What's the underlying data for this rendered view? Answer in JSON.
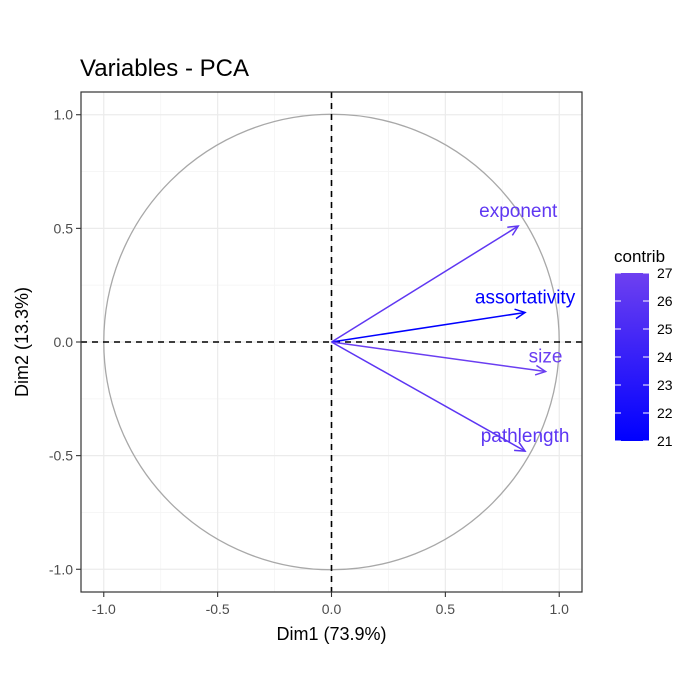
{
  "chart_data": {
    "type": "scatter",
    "subtype": "pca-variable-correlation-circle",
    "title": "Variables - PCA",
    "xlabel": "Dim1 (73.9%)",
    "ylabel": "Dim2 (13.3%)",
    "xlim": [
      -1.1,
      1.1
    ],
    "ylim": [
      -1.1,
      1.1
    ],
    "xticks": [
      -1.0,
      -0.5,
      0.0,
      0.5,
      1.0
    ],
    "yticks": [
      -1.0,
      -0.5,
      0.0,
      0.5,
      1.0
    ],
    "xtick_labels": [
      "-1.0",
      "-0.5",
      "0.0",
      "0.5",
      "1.0"
    ],
    "ytick_labels": [
      "-1.0",
      "-0.5",
      "0.0",
      "0.5",
      "1.0"
    ],
    "grid": true,
    "unit_circle": true,
    "variables": [
      {
        "name": "exponent",
        "x": 0.82,
        "y": 0.51,
        "contrib": 26.2
      },
      {
        "name": "assortativity",
        "x": 0.85,
        "y": 0.13,
        "contrib": 21.0
      },
      {
        "name": "size",
        "x": 0.94,
        "y": -0.13,
        "contrib": 26.8
      },
      {
        "name": "pathlength",
        "x": 0.85,
        "y": -0.48,
        "contrib": 26.0
      }
    ],
    "legend": {
      "title": "contrib",
      "placement": "right",
      "min": 21,
      "max": 27,
      "ticks": [
        21,
        22,
        23,
        24,
        25,
        26,
        27
      ],
      "color_low": "#0000ff",
      "color_high": "#6e40f0"
    },
    "colors": {
      "circle": "#a8a8a8",
      "grid_major": "#ebebeb",
      "grid_minor": "#f5f5f5",
      "panel_border": "#333333",
      "zero_lines": "#000000"
    }
  }
}
